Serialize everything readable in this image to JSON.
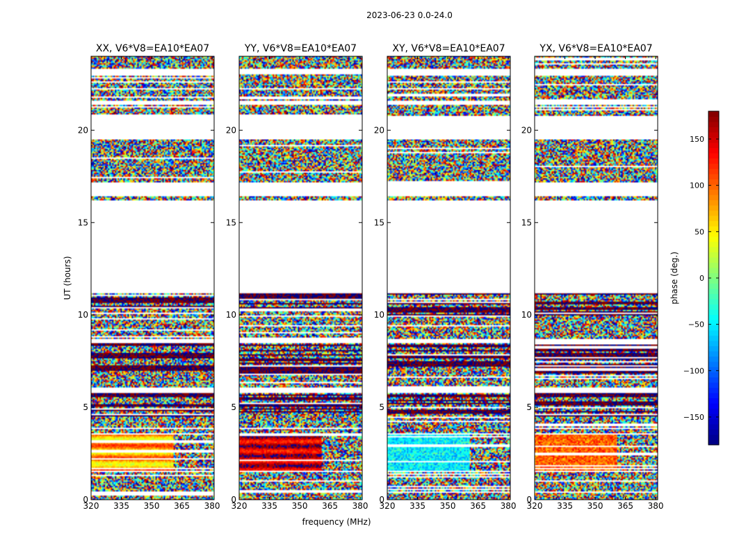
{
  "figure": {
    "suptitle": "2023-06-23 0.0-24.0",
    "xlabel": "frequency (MHz)",
    "ylabel": "UT (hours)",
    "colorbar_label": "phase (deg.)"
  },
  "chart_data": [
    {
      "type": "heatmap",
      "title": "XX, V6*V8=EA10*EA07",
      "x_range": [
        320,
        381
      ],
      "y_range": [
        0,
        24
      ],
      "x_ticks": [
        "320",
        "335",
        "350",
        "365",
        "380"
      ],
      "y_ticks": [
        "0",
        "5",
        "10",
        "15",
        "20"
      ],
      "pattern": "XX"
    },
    {
      "type": "heatmap",
      "title": "YY, V6*V8=EA10*EA07",
      "x_range": [
        320,
        381
      ],
      "y_range": [
        0,
        24
      ],
      "x_ticks": [
        "320",
        "335",
        "350",
        "365",
        "380"
      ],
      "y_ticks": [
        "0",
        "5",
        "10",
        "15",
        "20"
      ],
      "pattern": "YY"
    },
    {
      "type": "heatmap",
      "title": "XY, V6*V8=EA10*EA07",
      "x_range": [
        320,
        381
      ],
      "y_range": [
        0,
        24
      ],
      "x_ticks": [
        "320",
        "335",
        "350",
        "365",
        "380"
      ],
      "y_ticks": [
        "0",
        "5",
        "10",
        "15",
        "20"
      ],
      "pattern": "XY"
    },
    {
      "type": "heatmap",
      "title": "YX, V6*V8=EA10*EA07",
      "x_range": [
        320,
        381
      ],
      "y_range": [
        0,
        24
      ],
      "x_ticks": [
        "320",
        "335",
        "350",
        "365",
        "380"
      ],
      "y_ticks": [
        "0",
        "5",
        "10",
        "15",
        "20"
      ],
      "pattern": "YX"
    }
  ],
  "colorbar": {
    "range": [
      -180,
      180
    ],
    "ticks": [
      "150",
      "100",
      "50",
      "0",
      "−50",
      "−100",
      "−150"
    ],
    "tick_values": [
      150,
      100,
      50,
      0,
      -50,
      -100,
      -150
    ],
    "colormap": "jet"
  },
  "data_bands": [
    {
      "from": 0.0,
      "to": 0.35,
      "kind": "noise"
    },
    {
      "from": 0.45,
      "to": 1.5,
      "kind": "noise"
    },
    {
      "from": 1.6,
      "to": 3.5,
      "kind": "coherent"
    },
    {
      "from": 3.6,
      "to": 4.5,
      "kind": "noise"
    },
    {
      "from": 4.5,
      "to": 5.8,
      "kind": "dark"
    },
    {
      "from": 6.1,
      "to": 6.8,
      "kind": "noise"
    },
    {
      "from": 6.8,
      "to": 8.5,
      "kind": "dark"
    },
    {
      "from": 8.7,
      "to": 10.0,
      "kind": "noise"
    },
    {
      "from": 10.0,
      "to": 11.2,
      "kind": "dark"
    },
    {
      "from": 16.2,
      "to": 16.4,
      "kind": "noise"
    },
    {
      "from": 17.2,
      "to": 19.5,
      "kind": "noise"
    },
    {
      "from": 20.8,
      "to": 21.4,
      "kind": "noise"
    },
    {
      "from": 21.6,
      "to": 23.0,
      "kind": "noise"
    },
    {
      "from": 23.3,
      "to": 24.0,
      "kind": "noise"
    }
  ]
}
